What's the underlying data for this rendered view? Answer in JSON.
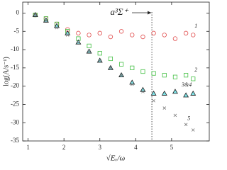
{
  "chart_data": {
    "type": "scatter",
    "xlabel": "√Eᵥ/ω",
    "ylabel": "log(A/s⁻¹)",
    "annotation": "a³Σ⁺",
    "marker_x": 4.45,
    "xlim": [
      0.85,
      6.05
    ],
    "ylim": [
      -35,
      3
    ],
    "xticks": [
      1,
      2,
      3,
      4,
      5
    ],
    "yticks": [
      0,
      -5,
      -10,
      -15,
      -20,
      -25,
      -30,
      -35
    ],
    "series": [
      {
        "name": "1",
        "color": "#e04848",
        "marker": "circle",
        "x": [
          1.2,
          1.5,
          1.8,
          2.1,
          2.4,
          2.7,
          3.0,
          3.3,
          3.6,
          3.9,
          4.2,
          4.5,
          4.8,
          5.1,
          5.4,
          5.6
        ],
        "values": [
          -0.5,
          -1.5,
          -3,
          -4.5,
          -5.5,
          -6,
          -5.5,
          -6.5,
          -5,
          -6,
          -6.5,
          -5.5,
          -6,
          -7,
          -5.5,
          -6
        ]
      },
      {
        "name": "2",
        "color": "#44c044",
        "marker": "square",
        "x": [
          1.2,
          1.5,
          1.8,
          2.1,
          2.4,
          2.7,
          3.0,
          3.3,
          3.6,
          3.9,
          4.2,
          4.5,
          4.8,
          5.1,
          5.4,
          5.6
        ],
        "values": [
          -0.5,
          -1.5,
          -3,
          -5,
          -7,
          -9,
          -11,
          -12.5,
          -14,
          -15,
          -16,
          -16.5,
          -17,
          -17.5,
          -17,
          -18
        ]
      },
      {
        "name": "3&4",
        "color": "#1a1a1a",
        "marker": "triangle",
        "x": [
          1.2,
          1.5,
          1.8,
          2.1,
          2.4,
          2.7,
          3.0,
          3.3,
          3.6,
          3.9,
          4.2,
          4.5,
          4.8,
          5.1,
          5.4,
          5.6
        ],
        "values": [
          -0.5,
          -2,
          -3.5,
          -5.5,
          -8,
          -10.5,
          -13,
          -15,
          -17,
          -19,
          -21,
          -22,
          -22,
          -21.5,
          -22.5,
          -22
        ]
      },
      {
        "name": "5",
        "color": "#777777",
        "marker": "cross",
        "x": [
          1.2,
          1.5,
          1.8,
          2.1,
          2.4,
          2.7,
          3.0,
          3.3,
          3.6,
          3.9,
          4.2,
          4.5,
          4.8,
          5.1,
          5.4,
          5.6
        ],
        "values": [
          -0.5,
          -2,
          -4,
          -6,
          -8,
          -10.5,
          -13,
          -15,
          -17,
          -19.5,
          -21.5,
          -24,
          -26,
          -28,
          -30.5,
          -32
        ]
      }
    ]
  }
}
